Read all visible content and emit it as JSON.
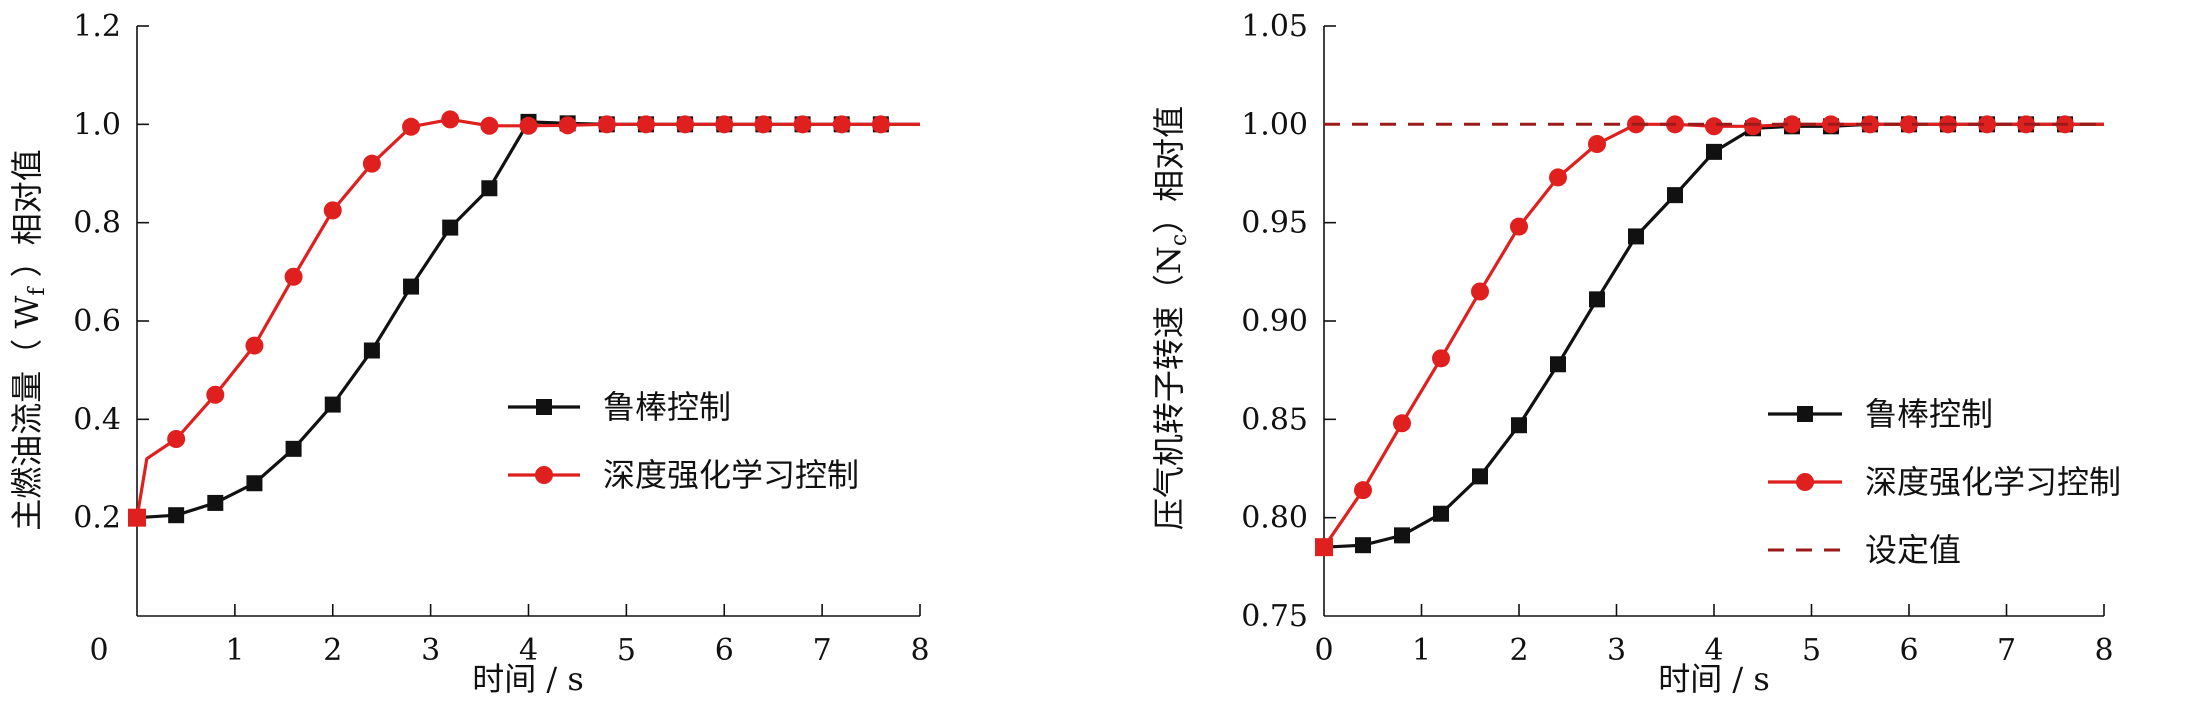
{
  "chart_data": [
    {
      "type": "line",
      "title": "",
      "xlabel": "时间 / s",
      "ylabel": "主燃油流量（ Wf ）相对值",
      "ylabel_main": "主燃油流量（ W",
      "ylabel_sub": "f",
      "ylabel_tail": " ）相对值",
      "xlim": [
        0,
        8
      ],
      "ylim": [
        0,
        1.2
      ],
      "xticks": [
        "0",
        "1",
        "2",
        "3",
        "4",
        "5",
        "6",
        "7",
        "8"
      ],
      "yticks": [
        "0.2",
        "0.4",
        "0.6",
        "0.8",
        "1.0",
        "1.2"
      ],
      "origin_label": "0",
      "grid": false,
      "legend_position": "center-right",
      "series": [
        {
          "name": "鲁棒控制",
          "color": "#111111",
          "marker": "square",
          "x": [
            0,
            0.4,
            0.8,
            1.2,
            1.6,
            2.0,
            2.4,
            2.8,
            3.2,
            3.6,
            4.0,
            4.4,
            4.8,
            5.2,
            5.6,
            6.0,
            6.4,
            6.8,
            7.2,
            7.6,
            8.0
          ],
          "y": [
            0.2,
            0.205,
            0.23,
            0.27,
            0.34,
            0.43,
            0.54,
            0.67,
            0.79,
            0.87,
            1.005,
            1.002,
            1.0,
            1.0,
            1.0,
            1.0,
            1.0,
            1.0,
            1.0,
            1.0,
            1.0
          ],
          "marker_x": [
            0.4,
            0.8,
            1.2,
            1.6,
            2.0,
            2.4,
            2.8,
            3.2,
            3.6,
            4.0,
            4.4,
            4.8,
            5.2,
            5.6,
            6.0,
            6.4,
            6.8,
            7.2,
            7.6
          ]
        },
        {
          "name": "深度强化学习控制",
          "color": "#e01f1f",
          "marker": "circle",
          "x": [
            0,
            0.1,
            0.4,
            0.8,
            1.2,
            1.6,
            2.0,
            2.4,
            2.8,
            3.2,
            3.6,
            4.0,
            4.4,
            4.8,
            5.2,
            5.6,
            6.0,
            6.4,
            6.8,
            7.2,
            7.6,
            8.0
          ],
          "y": [
            0.2,
            0.32,
            0.36,
            0.45,
            0.55,
            0.69,
            0.825,
            0.92,
            0.995,
            1.01,
            0.997,
            0.997,
            0.998,
            1.0,
            1.0,
            1.0,
            1.0,
            1.0,
            1.0,
            1.0,
            1.0,
            1.0
          ],
          "marker_x": [
            0.4,
            0.8,
            1.2,
            1.6,
            2.0,
            2.4,
            2.8,
            3.2,
            3.6,
            4.0,
            4.4,
            4.8,
            5.2,
            5.6,
            6.0,
            6.4,
            6.8,
            7.2,
            7.6
          ]
        }
      ]
    },
    {
      "type": "line",
      "title": "",
      "xlabel": "时间 / s",
      "ylabel": "压气机转子转速（Nc）相对值",
      "ylabel_main": "压气机转子转速（N",
      "ylabel_sub": "c",
      "ylabel_tail": "）相对值",
      "xlim": [
        0,
        8
      ],
      "ylim": [
        0.75,
        1.05
      ],
      "xticks": [
        "0",
        "1",
        "2",
        "3",
        "4",
        "5",
        "6",
        "7",
        "8"
      ],
      "yticks": [
        "0.75",
        "0.80",
        "0.85",
        "0.90",
        "0.95",
        "1.00",
        "1.05"
      ],
      "grid": false,
      "legend_position": "bottom-right",
      "series": [
        {
          "name": "鲁棒控制",
          "color": "#111111",
          "marker": "square",
          "x": [
            0,
            0.4,
            0.8,
            1.2,
            1.6,
            2.0,
            2.4,
            2.8,
            3.2,
            3.6,
            4.0,
            4.4,
            4.8,
            5.2,
            5.6,
            6.0,
            6.4,
            6.8,
            7.2,
            7.6,
            8.0
          ],
          "y": [
            0.785,
            0.786,
            0.791,
            0.802,
            0.821,
            0.847,
            0.878,
            0.911,
            0.943,
            0.964,
            0.986,
            0.998,
            0.999,
            0.999,
            1.0,
            1.0,
            1.0,
            1.0,
            1.0,
            1.0,
            1.0
          ],
          "marker_x": [
            0.4,
            0.8,
            1.2,
            1.6,
            2.0,
            2.4,
            2.8,
            3.2,
            3.6,
            4.0,
            4.4,
            4.8,
            5.2,
            5.6,
            6.0,
            6.4,
            6.8,
            7.2,
            7.6
          ]
        },
        {
          "name": "深度强化学习控制",
          "color": "#e01f1f",
          "marker": "circle",
          "x": [
            0,
            0.4,
            0.8,
            1.2,
            1.6,
            2.0,
            2.4,
            2.8,
            3.2,
            3.6,
            4.0,
            4.4,
            4.8,
            5.2,
            5.6,
            6.0,
            6.4,
            6.8,
            7.2,
            7.6,
            8.0
          ],
          "y": [
            0.785,
            0.814,
            0.848,
            0.881,
            0.915,
            0.948,
            0.973,
            0.99,
            1.0,
            1.0,
            0.999,
            0.999,
            1.0,
            1.0,
            1.0,
            1.0,
            1.0,
            1.0,
            1.0,
            1.0,
            1.0
          ],
          "marker_x": [
            0.4,
            0.8,
            1.2,
            1.6,
            2.0,
            2.4,
            2.8,
            3.2,
            3.6,
            4.0,
            4.4,
            4.8,
            5.2,
            5.6,
            6.0,
            6.4,
            6.8,
            7.2,
            7.6
          ]
        },
        {
          "name": "设定值",
          "color": "#9b1b1b",
          "marker": "none",
          "dashed": true,
          "x": [
            0,
            8
          ],
          "y": [
            1.0,
            1.0
          ]
        }
      ]
    }
  ]
}
